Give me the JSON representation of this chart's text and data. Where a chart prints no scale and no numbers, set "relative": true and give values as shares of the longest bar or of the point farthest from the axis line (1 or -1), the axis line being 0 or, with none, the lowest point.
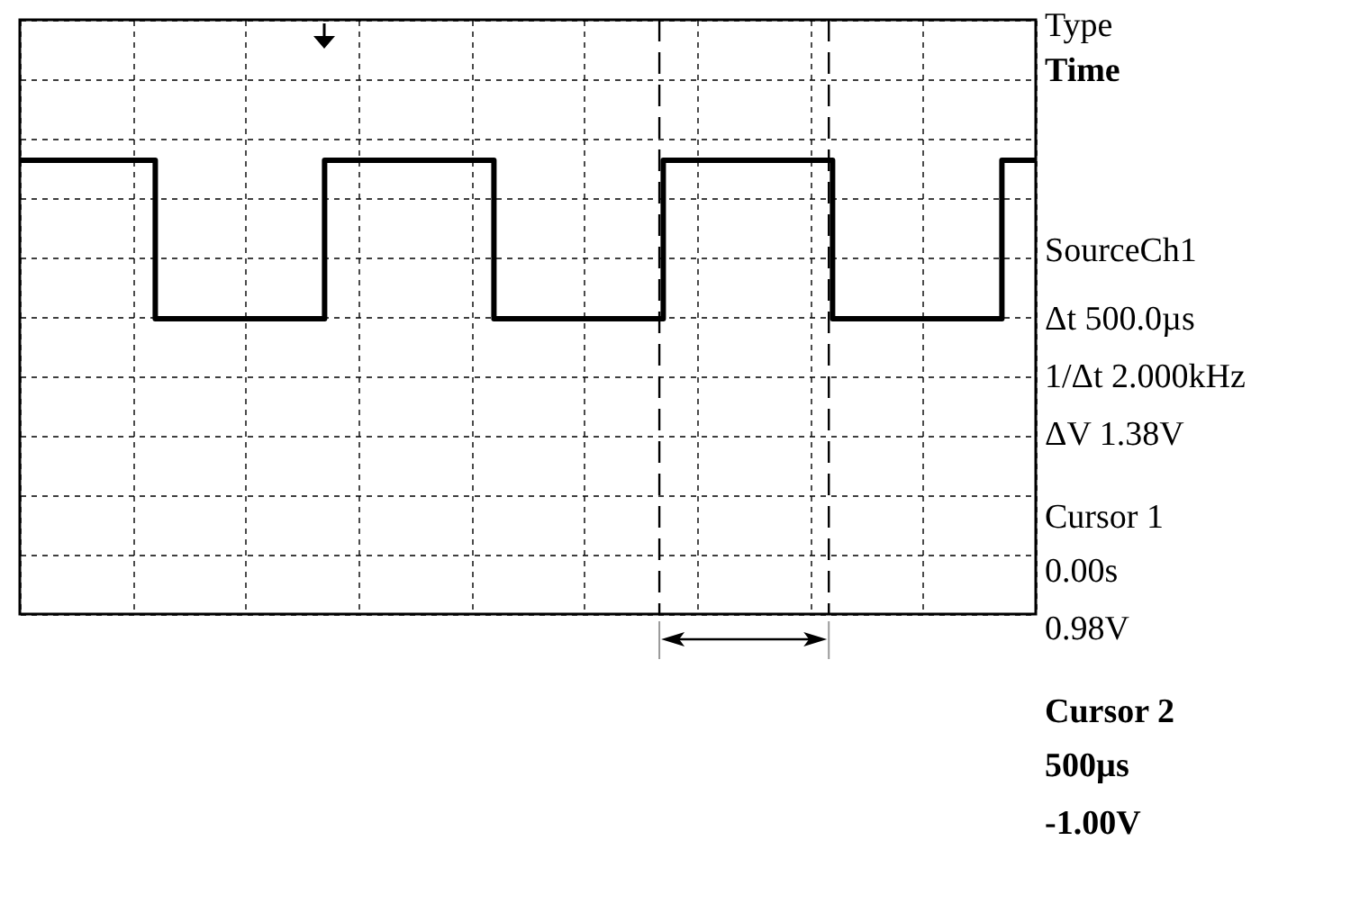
{
  "chart_data": {
    "type": "step",
    "relative": true,
    "categories": [
      null,
      null,
      null,
      null,
      null,
      null,
      null,
      null,
      null,
      null,
      null,
      null,
      null,
      null,
      null,
      null,
      null,
      null,
      null,
      null,
      null,
      null,
      null,
      null,
      null,
      null,
      null,
      null,
      null,
      null,
      null
    ],
    "tick_labels": false,
    "grid": true,
    "marker": "none",
    "line_style": "solid",
    "series": [
      {
        "color": "#000000",
        "values": [
          1,
          1,
          1,
          1,
          0,
          0,
          0,
          0,
          0,
          1,
          1,
          1,
          1,
          1,
          0,
          0,
          0,
          0,
          0,
          1,
          1,
          1,
          1,
          1,
          0,
          0,
          0,
          0,
          0,
          1,
          1
        ]
      }
    ],
    "annotations": [
      "Type",
      "Time",
      "SourceCh1",
      "Δt 500.0µs",
      "1/Δt 2.000kHz",
      "ΔV 1.38V",
      "Cursor 1",
      "0.00s",
      "0.98V",
      "Cursor 2",
      "500µs",
      "-1.00V"
    ]
  }
}
